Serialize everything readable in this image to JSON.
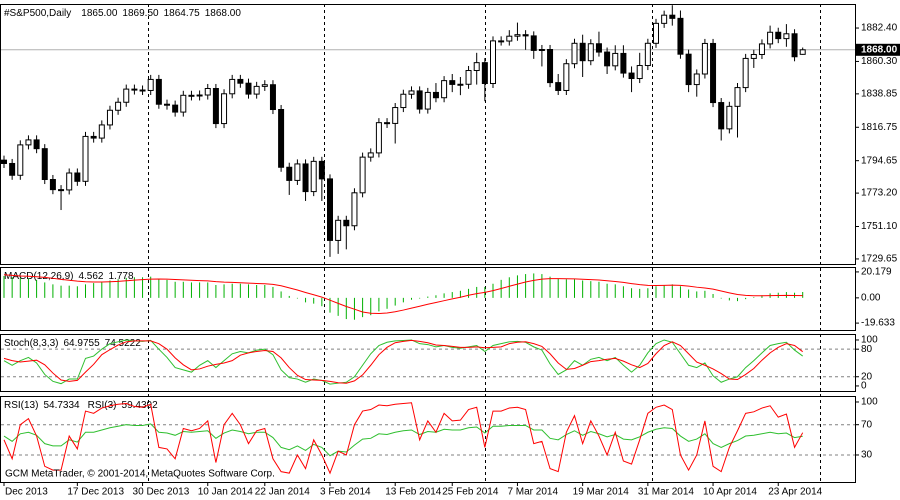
{
  "chart_data": [
    {
      "type": "candlestick",
      "title": "#S&P500,Daily",
      "ohlc_labels": [
        "1865.00",
        "1869.50",
        "1864.75",
        "1868.00"
      ],
      "up_color": "#ffffff",
      "down_color": "#000000",
      "categories": [
        "Dec 2013",
        null,
        null,
        null,
        null,
        null,
        null,
        null,
        null,
        "17 Dec 2013",
        null,
        null,
        null,
        null,
        null,
        null,
        null,
        "30 Dec 2013",
        null,
        null,
        null,
        null,
        null,
        null,
        null,
        "10 Jan 2014",
        null,
        null,
        null,
        null,
        null,
        null,
        "22 Jan 2014",
        null,
        null,
        null,
        null,
        null,
        null,
        null,
        "3 Feb 2014",
        null,
        null,
        null,
        null,
        null,
        null,
        null,
        "13 Feb 2014",
        null,
        null,
        null,
        null,
        null,
        null,
        "25 Feb 2014",
        null,
        null,
        null,
        null,
        null,
        null,
        null,
        "7 Mar 2014",
        null,
        null,
        null,
        null,
        null,
        null,
        null,
        "19 Mar 2014",
        null,
        null,
        null,
        null,
        null,
        null,
        null,
        "31 Mar 2014",
        null,
        null,
        null,
        null,
        null,
        null,
        null,
        "10 Apr 2014",
        null,
        null,
        null,
        null,
        null,
        null,
        null,
        "23 Apr 2014",
        null,
        null,
        null
      ],
      "open": [
        1795.0,
        1792.8,
        1785.0,
        1805.1,
        1808.4,
        1802.6,
        1782.2,
        1775.5,
        1775.3,
        1786.5,
        1781.0,
        1810.7,
        1809.6,
        1818.3,
        1828.0,
        1833.3,
        1842.0,
        1841.4,
        1841.1,
        1848.4,
        1832.0,
        1831.4,
        1826.8,
        1837.9,
        1837.5,
        1838.1,
        1842.4,
        1819.2,
        1838.9,
        1848.4,
        1845.9,
        1838.7,
        1843.8,
        1844.9,
        1828.5,
        1790.3,
        1781.6,
        1792.5,
        1774.2,
        1794.2,
        1782.6,
        1741.9,
        1755.2,
        1751.6,
        1773.4,
        1797.0,
        1799.8,
        1819.8,
        1819.3,
        1829.8,
        1838.6,
        1840.8,
        1828.8,
        1839.8,
        1836.3,
        1847.6,
        1845.1,
        1845.2,
        1854.3,
        1859.5,
        1845.7,
        1873.9,
        1873.8,
        1877.0,
        1878.0,
        1877.2,
        1867.6,
        1868.2,
        1846.3,
        1841.1,
        1858.8,
        1872.3,
        1860.8,
        1872.0,
        1866.5,
        1857.4,
        1865.6,
        1852.6,
        1849.0,
        1857.6,
        1872.3,
        1885.5,
        1890.9,
        1888.8,
        1865.1,
        1845.0,
        1852.0,
        1872.2,
        1833.1,
        1815.7,
        1830.6,
        1843.0,
        1862.3,
        1864.9,
        1871.9,
        1879.6,
        1875.4,
        1878.6,
        1865.0
      ],
      "high": [
        1798.0,
        1795.8,
        1808.1,
        1811.4,
        1811.4,
        1805.6,
        1785.2,
        1778.5,
        1789.5,
        1789.5,
        1813.7,
        1813.7,
        1821.3,
        1831.0,
        1836.3,
        1845.0,
        1845.0,
        1844.4,
        1851.4,
        1851.4,
        1835.0,
        1834.4,
        1840.9,
        1840.9,
        1841.1,
        1845.4,
        1845.4,
        1841.9,
        1851.4,
        1851.4,
        1848.9,
        1846.8,
        1847.9,
        1847.9,
        1831.5,
        1793.3,
        1795.5,
        1795.5,
        1797.2,
        1797.2,
        1785.6,
        1758.2,
        1758.2,
        1776.4,
        1800.0,
        1802.8,
        1822.8,
        1822.8,
        1832.8,
        1841.6,
        1843.8,
        1843.8,
        1842.8,
        1846.0,
        1850.6,
        1852.0,
        1850.0,
        1857.3,
        1866.0,
        1862.5,
        1876.9,
        1876.9,
        1881.0,
        1886.0,
        1881.0,
        1880.2,
        1871.2,
        1871.2,
        1852.0,
        1861.8,
        1875.3,
        1878.0,
        1875.0,
        1880.0,
        1869.5,
        1871.0,
        1871.0,
        1857.0,
        1866.0,
        1875.3,
        1888.5,
        1893.9,
        1897.5,
        1894.0,
        1868.1,
        1855.0,
        1875.2,
        1875.2,
        1836.1,
        1833.6,
        1846.0,
        1865.3,
        1868.0,
        1874.9,
        1884.0,
        1882.6,
        1885.0,
        1881.6,
        1869.5
      ],
      "low": [
        1789.8,
        1782.0,
        1782.0,
        1802.1,
        1799.6,
        1779.2,
        1772.5,
        1762.0,
        1772.3,
        1778.0,
        1778.0,
        1806.6,
        1806.6,
        1815.3,
        1825.0,
        1830.3,
        1838.4,
        1838.1,
        1838.1,
        1829.0,
        1828.4,
        1823.8,
        1823.8,
        1834.5,
        1834.5,
        1835.1,
        1816.2,
        1816.2,
        1835.9,
        1842.9,
        1835.7,
        1835.7,
        1840.8,
        1825.5,
        1787.3,
        1772.0,
        1778.6,
        1768.0,
        1771.2,
        1768.0,
        1731.0,
        1733.0,
        1736.0,
        1748.6,
        1770.4,
        1794.0,
        1796.8,
        1816.3,
        1806.0,
        1826.8,
        1835.6,
        1825.8,
        1825.8,
        1833.3,
        1833.3,
        1840.0,
        1838.0,
        1842.2,
        1845.0,
        1834.0,
        1842.7,
        1870.8,
        1870.8,
        1874.0,
        1868.0,
        1862.0,
        1857.0,
        1843.3,
        1838.1,
        1838.1,
        1855.8,
        1850.0,
        1857.8,
        1863.5,
        1852.0,
        1854.4,
        1849.6,
        1840.0,
        1846.0,
        1854.6,
        1869.3,
        1882.5,
        1884.0,
        1862.1,
        1840.0,
        1837.0,
        1849.0,
        1830.1,
        1808.0,
        1812.7,
        1810.0,
        1840.0,
        1856.0,
        1861.9,
        1868.9,
        1872.4,
        1870.0,
        1860.4,
        1864.75
      ],
      "close": [
        1792.8,
        1785.0,
        1805.1,
        1808.4,
        1802.6,
        1782.2,
        1775.5,
        1775.3,
        1786.5,
        1781.0,
        1810.7,
        1809.6,
        1818.3,
        1828.0,
        1833.3,
        1842.0,
        1841.4,
        1841.1,
        1848.4,
        1832.0,
        1831.4,
        1826.8,
        1837.9,
        1837.5,
        1838.1,
        1842.4,
        1819.2,
        1838.9,
        1848.4,
        1845.9,
        1838.7,
        1843.8,
        1844.9,
        1828.5,
        1790.3,
        1781.6,
        1792.5,
        1774.2,
        1794.2,
        1782.6,
        1741.9,
        1755.2,
        1751.6,
        1773.4,
        1797.0,
        1799.8,
        1819.8,
        1819.3,
        1829.8,
        1838.6,
        1840.8,
        1828.8,
        1839.8,
        1836.3,
        1847.6,
        1845.1,
        1845.2,
        1854.3,
        1859.5,
        1845.7,
        1873.9,
        1873.8,
        1877.0,
        1878.0,
        1877.2,
        1867.6,
        1868.2,
        1846.3,
        1841.1,
        1858.8,
        1872.3,
        1860.8,
        1872.0,
        1866.5,
        1857.4,
        1865.6,
        1852.6,
        1849.0,
        1857.6,
        1872.3,
        1885.5,
        1890.9,
        1888.8,
        1865.1,
        1845.0,
        1852.0,
        1872.2,
        1833.1,
        1815.7,
        1830.6,
        1843.0,
        1862.3,
        1864.9,
        1871.9,
        1879.6,
        1875.4,
        1878.6,
        1863.4,
        1868.0
      ],
      "price_line": {
        "value": 1868.0,
        "label": "1868.00"
      },
      "ylim": [
        1726.3,
        1898.3
      ],
      "yticks": [
        {
          "value": 1882.4,
          "label": "1882.40"
        },
        {
          "value": 1860.3,
          "label": "1860.30"
        },
        1838.85,
        1816.75,
        1794.65,
        {
          "value": 1773.2,
          "label": "1773.20"
        },
        {
          "value": 1751.1,
          "label": "1751.10"
        },
        1729.65
      ]
    },
    {
      "type": "combo",
      "title": "MACD(12,26,9)",
      "series": [
        {
          "style": "histogram",
          "color": "#00b000",
          "values": [
            17,
            16,
            15.5,
            15,
            14,
            12,
            10.5,
            9.5,
            9.5,
            9,
            10.5,
            11.5,
            12.5,
            13.5,
            14.5,
            15.5,
            16,
            16,
            16.5,
            15,
            14,
            12.5,
            12.5,
            12,
            12,
            12,
            10,
            10.5,
            11,
            11,
            10.5,
            10,
            10,
            8.5,
            5,
            1.5,
            -0.5,
            -3.5,
            -4.5,
            -6.5,
            -11.5,
            -14,
            -16.5,
            -17,
            -15,
            -13.5,
            -10.5,
            -8.5,
            -6,
            -3.5,
            -1.5,
            -0.5,
            1,
            2,
            3.5,
            4.5,
            5.5,
            7,
            8.5,
            8.5,
            11,
            14,
            16,
            17.5,
            18.5,
            19,
            18.5,
            16.5,
            15,
            14.5,
            14.5,
            13.5,
            13,
            12.5,
            11,
            10.5,
            9,
            7.5,
            7,
            7.5,
            9,
            10,
            10.5,
            9,
            6.5,
            5,
            5.5,
            3,
            -0.5,
            -2,
            -2.5,
            -1,
            0.5,
            2,
            3.5,
            4,
            4.5,
            4,
            4.562
          ]
        },
        {
          "style": "line",
          "color": "#ff0000",
          "values": [
            18,
            17.5,
            17,
            16.8,
            16.4,
            15.9,
            15.2,
            14.4,
            13.7,
            13,
            12.5,
            12.3,
            12.3,
            12.5,
            12.8,
            13.3,
            13.8,
            14.2,
            14.6,
            14.7,
            14.6,
            14.3,
            14,
            13.7,
            13.4,
            13.2,
            12.6,
            12.2,
            12,
            11.8,
            11.5,
            11.2,
            11,
            10.5,
            9.4,
            7.8,
            6.1,
            4.2,
            2.4,
            0.6,
            -1.8,
            -4.3,
            -6.7,
            -8.8,
            -11,
            -12,
            -12.2,
            -11.8,
            -10.8,
            -9.5,
            -8,
            -6.5,
            -5,
            -3.6,
            -2.2,
            -0.8,
            0.5,
            2,
            3.3,
            4.3,
            5.6,
            7.3,
            9,
            10.7,
            12.3,
            13.6,
            14.6,
            15,
            15,
            14.9,
            14.8,
            14.5,
            14.2,
            13.9,
            13.3,
            12.7,
            12,
            11.1,
            10.3,
            9.7,
            9.6,
            9.7,
            9.9,
            9.7,
            9.1,
            8.3,
            7.7,
            6.8,
            5.3,
            3.9,
            2.6,
            1.9,
            1.6,
            1.6,
            1.7,
            1.8,
            1.9,
            1.8,
            1.778
          ]
        }
      ],
      "ylim": [
        -25.0,
        24.0
      ],
      "yticks": [
        20.179,
        {
          "value": 0,
          "label": "0.00"
        },
        -19.633
      ]
    },
    {
      "type": "line",
      "title": "Stoch(8,3,3)",
      "series": [
        {
          "color": "#2fbf2f",
          "values": [
            55,
            45,
            55,
            62,
            50,
            25,
            10,
            5,
            15,
            15,
            60,
            65,
            80,
            92,
            96,
            100,
            98,
            97,
            99,
            80,
            62,
            40,
            35,
            30,
            45,
            55,
            40,
            55,
            70,
            75,
            72,
            78,
            80,
            68,
            35,
            18,
            15,
            8,
            15,
            12,
            4,
            6,
            8,
            20,
            45,
            70,
            88,
            95,
            98,
            99,
            100,
            92,
            90,
            85,
            88,
            84,
            82,
            85,
            88,
            75,
            88,
            92,
            96,
            97,
            95,
            85,
            78,
            48,
            25,
            35,
            55,
            45,
            58,
            62,
            55,
            62,
            45,
            30,
            45,
            72,
            92,
            100,
            95,
            70,
            45,
            40,
            50,
            22,
            8,
            15,
            20,
            40,
            55,
            72,
            88,
            92,
            95,
            78,
            64.9755
          ]
        },
        {
          "color": "#ff0000",
          "values": [
            60,
            55,
            52,
            54,
            56,
            46,
            28,
            13,
            10,
            12,
            30,
            47,
            68,
            79,
            89,
            96,
            98,
            98,
            98,
            92,
            80,
            61,
            46,
            35,
            37,
            43,
            47,
            50,
            55,
            67,
            72,
            75,
            77,
            75,
            61,
            40,
            23,
            14,
            13,
            12,
            10,
            7,
            6,
            11,
            24,
            45,
            68,
            84,
            94,
            97,
            99,
            97,
            94,
            89,
            88,
            86,
            84,
            84,
            85,
            83,
            84,
            85,
            92,
            95,
            96,
            92,
            86,
            70,
            50,
            36,
            38,
            45,
            53,
            55,
            58,
            60,
            54,
            46,
            40,
            49,
            70,
            88,
            96,
            88,
            70,
            52,
            45,
            37,
            27,
            15,
            14,
            25,
            38,
            56,
            72,
            84,
            92,
            88,
            74.5222
          ]
        }
      ],
      "levels": [
        80,
        20
      ],
      "ylim": [
        -11,
        113
      ],
      "yticks": [
        100,
        80,
        20,
        0
      ]
    },
    {
      "type": "line",
      "series": [
        {
          "name": "RSI(13)",
          "color": "#2fbf2f",
          "values": [
            55,
            48,
            58,
            60,
            56,
            45,
            42,
            42,
            50,
            47,
            60,
            60,
            63,
            66,
            68,
            70,
            69,
            69,
            71,
            60,
            59,
            56,
            61,
            60,
            61,
            62,
            52,
            59,
            63,
            61,
            58,
            60,
            60,
            53,
            40,
            37,
            42,
            36,
            44,
            40,
            29,
            35,
            34,
            43,
            51,
            52,
            58,
            57,
            60,
            62,
            63,
            57,
            61,
            60,
            64,
            63,
            63,
            66,
            67,
            59,
            68,
            68,
            69,
            69,
            69,
            63,
            63,
            52,
            50,
            57,
            62,
            56,
            61,
            58,
            54,
            57,
            51,
            50,
            54,
            60,
            64,
            66,
            65,
            55,
            48,
            51,
            58,
            45,
            40,
            45,
            49,
            55,
            56,
            58,
            60,
            58,
            59,
            53,
            54.7334
          ]
        },
        {
          "name": "RSI(3)",
          "color": "#ff0000",
          "values": [
            50,
            25,
            70,
            78,
            55,
            15,
            10,
            10,
            55,
            38,
            88,
            85,
            92,
            95,
            97,
            98,
            94,
            93,
            97,
            40,
            38,
            25,
            65,
            62,
            65,
            75,
            20,
            70,
            85,
            70,
            45,
            62,
            65,
            25,
            8,
            6,
            30,
            12,
            50,
            30,
            6,
            35,
            30,
            70,
            88,
            90,
            96,
            95,
            97,
            98,
            99,
            50,
            75,
            60,
            85,
            75,
            76,
            90,
            93,
            40,
            88,
            88,
            92,
            93,
            90,
            45,
            48,
            12,
            8,
            60,
            82,
            45,
            75,
            55,
            30,
            60,
            22,
            18,
            50,
            85,
            93,
            96,
            90,
            30,
            10,
            30,
            75,
            15,
            8,
            40,
            62,
            85,
            87,
            92,
            95,
            80,
            84,
            40,
            59.4392
          ]
        }
      ],
      "levels": [
        70,
        30
      ],
      "ylim": [
        -5.7,
        107.9
      ],
      "yticks": [
        100,
        70,
        30
      ]
    }
  ],
  "watermark": "GCM MetaTrader, © 2001-2014, MetaQuotes Software Corp."
}
